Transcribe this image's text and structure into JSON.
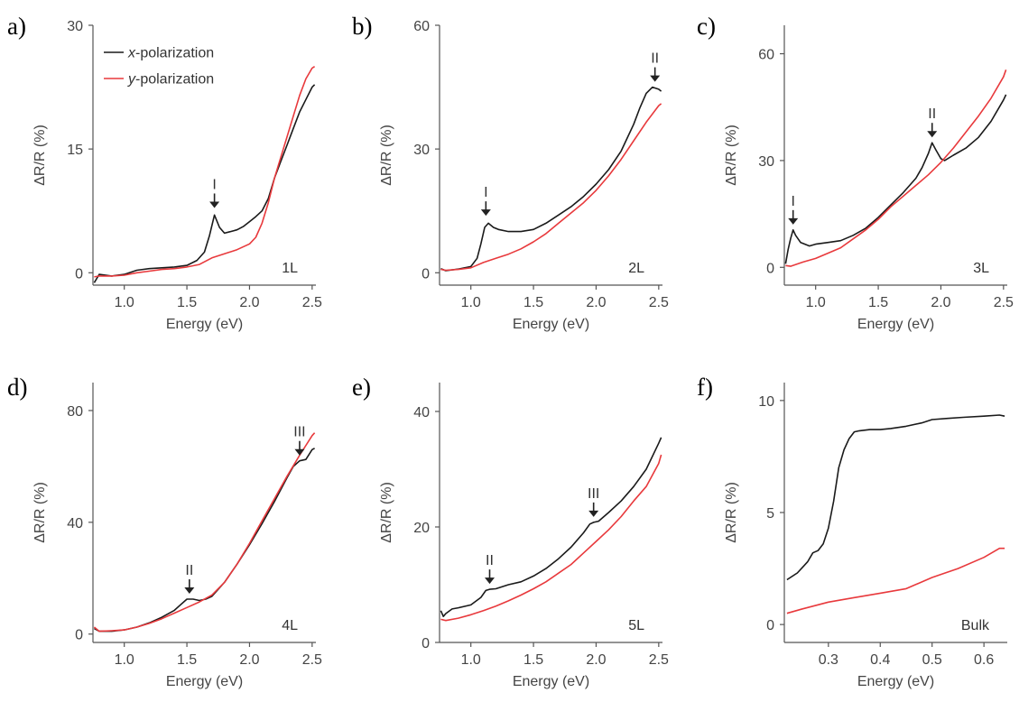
{
  "chart_data": [
    {
      "panel": "a)",
      "type": "line",
      "layer_label": "1L",
      "xlabel": "Energy (eV)",
      "ylabel": "ΔR/R (%)",
      "xlim": [
        0.75,
        2.53
      ],
      "ylim": [
        -1.5,
        30
      ],
      "xticks": [
        1.0,
        1.5,
        2.0,
        2.5
      ],
      "yticks": [
        0,
        15,
        30
      ],
      "legend": {
        "position": "top-left",
        "entries": [
          {
            "prefix": "x",
            "text": "-polarization",
            "color": "#1a1a1a"
          },
          {
            "prefix": "y",
            "text": "-polarization",
            "color": "#e8393c"
          }
        ]
      },
      "annotations": [
        {
          "text": "I",
          "x": 1.72,
          "y": 7.2
        }
      ],
      "series": [
        {
          "name": "x-polarization",
          "color": "#1a1a1a",
          "x": [
            0.76,
            0.8,
            0.9,
            1.0,
            1.1,
            1.2,
            1.3,
            1.4,
            1.5,
            1.58,
            1.64,
            1.68,
            1.72,
            1.76,
            1.8,
            1.85,
            1.9,
            1.95,
            2.0,
            2.05,
            2.1,
            2.15,
            2.2,
            2.25,
            2.3,
            2.35,
            2.4,
            2.45,
            2.5,
            2.52
          ],
          "y": [
            -1.2,
            -0.2,
            -0.4,
            -0.2,
            0.3,
            0.5,
            0.6,
            0.7,
            0.9,
            1.5,
            2.5,
            4.5,
            7.0,
            5.5,
            4.8,
            5.0,
            5.2,
            5.6,
            6.2,
            6.8,
            7.5,
            9.0,
            11.5,
            13.5,
            15.5,
            17.5,
            19.5,
            21.0,
            22.5,
            22.8
          ]
        },
        {
          "name": "y-polarization",
          "color": "#e8393c",
          "x": [
            0.76,
            0.8,
            0.9,
            1.0,
            1.1,
            1.2,
            1.3,
            1.4,
            1.5,
            1.6,
            1.7,
            1.8,
            1.9,
            2.0,
            2.05,
            2.1,
            2.15,
            2.2,
            2.25,
            2.3,
            2.35,
            2.4,
            2.45,
            2.5,
            2.52
          ],
          "y": [
            -0.5,
            -0.4,
            -0.4,
            -0.3,
            0.0,
            0.2,
            0.4,
            0.5,
            0.7,
            1.0,
            1.8,
            2.3,
            2.8,
            3.5,
            4.3,
            6.0,
            8.5,
            11.5,
            14.0,
            16.5,
            19.0,
            21.5,
            23.5,
            24.8,
            25.0
          ]
        }
      ]
    },
    {
      "panel": "b)",
      "type": "line",
      "layer_label": "2L",
      "xlabel": "Energy (eV)",
      "ylabel": "ΔR/R (%)",
      "xlim": [
        0.75,
        2.53
      ],
      "ylim": [
        -3,
        60
      ],
      "xticks": [
        1.0,
        1.5,
        2.0,
        2.5
      ],
      "yticks": [
        0,
        30,
        60
      ],
      "annotations": [
        {
          "text": "I",
          "x": 1.12,
          "y": 12.5
        },
        {
          "text": "II",
          "x": 2.47,
          "y": 45
        }
      ],
      "series": [
        {
          "name": "x-polarization",
          "color": "#1a1a1a",
          "x": [
            0.76,
            0.8,
            0.9,
            1.0,
            1.05,
            1.08,
            1.11,
            1.14,
            1.18,
            1.22,
            1.3,
            1.4,
            1.5,
            1.6,
            1.7,
            1.8,
            1.9,
            2.0,
            2.1,
            2.2,
            2.3,
            2.35,
            2.4,
            2.45,
            2.5,
            2.52
          ],
          "y": [
            1.0,
            0.5,
            0.9,
            1.5,
            3.5,
            7.0,
            11.0,
            12.0,
            11.0,
            10.5,
            10.0,
            10.0,
            10.5,
            12.0,
            14.0,
            16.0,
            18.5,
            21.5,
            25.0,
            29.5,
            36.0,
            40.0,
            43.5,
            45.0,
            44.5,
            44.0
          ]
        },
        {
          "name": "y-polarization",
          "color": "#e8393c",
          "x": [
            0.76,
            0.8,
            0.9,
            1.0,
            1.1,
            1.2,
            1.3,
            1.4,
            1.5,
            1.6,
            1.7,
            1.8,
            1.9,
            2.0,
            2.1,
            2.2,
            2.3,
            2.4,
            2.5,
            2.52
          ],
          "y": [
            0.8,
            0.6,
            0.8,
            1.2,
            2.5,
            3.5,
            4.5,
            5.8,
            7.5,
            9.5,
            12.0,
            14.5,
            17.0,
            20.0,
            23.5,
            27.5,
            32.0,
            36.5,
            40.5,
            41.0
          ]
        }
      ]
    },
    {
      "panel": "c)",
      "type": "line",
      "layer_label": "3L",
      "xlabel": "Energy (eV)",
      "ylabel": "ΔR/R (%)",
      "xlim": [
        0.75,
        2.53
      ],
      "ylim": [
        -5,
        68
      ],
      "xticks": [
        1.0,
        1.5,
        2.0,
        2.5
      ],
      "yticks": [
        0,
        30,
        60
      ],
      "annotations": [
        {
          "text": "I",
          "x": 0.82,
          "y": 10.5
        },
        {
          "text": "II",
          "x": 1.93,
          "y": 35
        }
      ],
      "series": [
        {
          "name": "x-polarization",
          "color": "#1a1a1a",
          "x": [
            0.76,
            0.78,
            0.8,
            0.82,
            0.84,
            0.88,
            0.95,
            1.0,
            1.1,
            1.2,
            1.3,
            1.4,
            1.5,
            1.6,
            1.7,
            1.8,
            1.85,
            1.9,
            1.93,
            1.96,
            2.0,
            2.03,
            2.1,
            2.2,
            2.3,
            2.4,
            2.5,
            2.52
          ],
          "y": [
            1.0,
            5.0,
            8.0,
            10.5,
            9.0,
            7.0,
            6.0,
            6.5,
            7.0,
            7.5,
            9.0,
            11.0,
            14.0,
            17.5,
            21.0,
            25.0,
            28.0,
            32.0,
            35.0,
            33.0,
            30.5,
            30.0,
            31.5,
            33.5,
            36.5,
            41.0,
            47.0,
            48.5
          ]
        },
        {
          "name": "y-polarization",
          "color": "#e8393c",
          "x": [
            0.76,
            0.8,
            0.9,
            1.0,
            1.1,
            1.2,
            1.3,
            1.4,
            1.5,
            1.6,
            1.7,
            1.8,
            1.9,
            2.0,
            2.1,
            2.2,
            2.3,
            2.4,
            2.5,
            2.52
          ],
          "y": [
            0.5,
            0.3,
            1.5,
            2.5,
            4.0,
            5.5,
            8.0,
            10.5,
            13.5,
            17.0,
            20.0,
            23.0,
            26.0,
            29.5,
            33.5,
            38.0,
            42.5,
            47.5,
            53.5,
            55.5
          ]
        }
      ]
    },
    {
      "panel": "d)",
      "type": "line",
      "layer_label": "4L",
      "xlabel": "Energy (eV)",
      "ylabel": "ΔR/R (%)",
      "xlim": [
        0.75,
        2.53
      ],
      "ylim": [
        -3,
        90
      ],
      "xticks": [
        1.0,
        1.5,
        2.0,
        2.5
      ],
      "yticks": [
        0,
        40,
        80
      ],
      "annotations": [
        {
          "text": "II",
          "x": 1.52,
          "y": 12.5
        },
        {
          "text": "III",
          "x": 2.4,
          "y": 62
        }
      ],
      "series": [
        {
          "name": "x-polarization",
          "color": "#1a1a1a",
          "x": [
            0.76,
            0.8,
            0.9,
            1.0,
            1.1,
            1.2,
            1.3,
            1.4,
            1.45,
            1.5,
            1.55,
            1.6,
            1.65,
            1.7,
            1.8,
            1.9,
            2.0,
            2.1,
            2.2,
            2.3,
            2.35,
            2.4,
            2.45,
            2.5,
            2.52
          ],
          "y": [
            2.0,
            1.0,
            1.0,
            1.5,
            2.5,
            4.0,
            6.0,
            8.5,
            10.5,
            12.5,
            12.5,
            12.0,
            12.5,
            13.5,
            18.5,
            25.0,
            32.0,
            39.5,
            47.5,
            56.0,
            60.0,
            62.0,
            62.5,
            66.0,
            66.5
          ]
        },
        {
          "name": "y-polarization",
          "color": "#e8393c",
          "x": [
            0.76,
            0.8,
            0.9,
            1.0,
            1.1,
            1.2,
            1.3,
            1.4,
            1.5,
            1.6,
            1.7,
            1.8,
            1.9,
            2.0,
            2.1,
            2.2,
            2.3,
            2.4,
            2.5,
            2.52
          ],
          "y": [
            2.5,
            1.0,
            1.2,
            1.5,
            2.5,
            3.8,
            5.5,
            7.5,
            9.5,
            11.5,
            14.0,
            18.5,
            25.0,
            32.5,
            40.5,
            48.5,
            56.5,
            64.0,
            71.0,
            72.0
          ]
        }
      ]
    },
    {
      "panel": "e)",
      "type": "line",
      "layer_label": "5L",
      "xlabel": "Energy (eV)",
      "ylabel": "ΔR/R (%)",
      "xlim": [
        0.75,
        2.53
      ],
      "ylim": [
        0,
        45
      ],
      "xticks": [
        1.0,
        1.5,
        2.0,
        2.5
      ],
      "yticks": [
        0,
        20,
        40
      ],
      "annotations": [
        {
          "text": "II",
          "x": 1.15,
          "y": 9.2
        },
        {
          "text": "III",
          "x": 1.98,
          "y": 20.8
        }
      ],
      "series": [
        {
          "name": "x-polarization",
          "color": "#1a1a1a",
          "x": [
            0.76,
            0.78,
            0.8,
            0.85,
            0.9,
            1.0,
            1.08,
            1.12,
            1.15,
            1.2,
            1.3,
            1.4,
            1.5,
            1.6,
            1.7,
            1.8,
            1.9,
            1.95,
            1.98,
            2.02,
            2.1,
            2.2,
            2.3,
            2.4,
            2.5,
            2.52
          ],
          "y": [
            5.5,
            4.5,
            5.0,
            5.8,
            6.0,
            6.5,
            7.8,
            9.0,
            9.2,
            9.3,
            10.0,
            10.5,
            11.5,
            12.8,
            14.5,
            16.5,
            19.0,
            20.5,
            20.8,
            21.0,
            22.5,
            24.5,
            27.0,
            30.0,
            34.5,
            35.5
          ]
        },
        {
          "name": "y-polarization",
          "color": "#e8393c",
          "x": [
            0.76,
            0.8,
            0.9,
            1.0,
            1.1,
            1.2,
            1.3,
            1.4,
            1.5,
            1.6,
            1.7,
            1.8,
            1.9,
            2.0,
            2.1,
            2.2,
            2.3,
            2.4,
            2.5,
            2.52
          ],
          "y": [
            4.0,
            3.8,
            4.2,
            4.8,
            5.5,
            6.3,
            7.2,
            8.2,
            9.3,
            10.5,
            12.0,
            13.5,
            15.5,
            17.5,
            19.5,
            21.8,
            24.5,
            27.0,
            31.0,
            32.5
          ]
        }
      ]
    },
    {
      "panel": "f)",
      "type": "line",
      "layer_label": "Bulk",
      "xlabel": "Energy (eV)",
      "ylabel": "ΔR/R (%)",
      "xlim": [
        0.215,
        0.645
      ],
      "ylim": [
        -0.8,
        10.8
      ],
      "xticks": [
        0.3,
        0.4,
        0.5,
        0.6
      ],
      "yticks": [
        0,
        5,
        10
      ],
      "annotations": [],
      "series": [
        {
          "name": "x-polarization",
          "color": "#1a1a1a",
          "x": [
            0.22,
            0.24,
            0.26,
            0.27,
            0.28,
            0.29,
            0.3,
            0.31,
            0.32,
            0.33,
            0.34,
            0.35,
            0.36,
            0.38,
            0.4,
            0.42,
            0.45,
            0.48,
            0.5,
            0.53,
            0.56,
            0.6,
            0.63,
            0.64
          ],
          "y": [
            2.0,
            2.3,
            2.8,
            3.2,
            3.3,
            3.6,
            4.3,
            5.5,
            7.0,
            7.8,
            8.3,
            8.6,
            8.65,
            8.7,
            8.7,
            8.75,
            8.85,
            9.0,
            9.15,
            9.2,
            9.25,
            9.3,
            9.35,
            9.3
          ]
        },
        {
          "name": "y-polarization",
          "color": "#e8393c",
          "x": [
            0.22,
            0.25,
            0.3,
            0.35,
            0.4,
            0.45,
            0.5,
            0.55,
            0.6,
            0.63,
            0.64
          ],
          "y": [
            0.5,
            0.7,
            1.0,
            1.2,
            1.4,
            1.6,
            2.1,
            2.5,
            3.0,
            3.4,
            3.4
          ]
        }
      ]
    }
  ]
}
